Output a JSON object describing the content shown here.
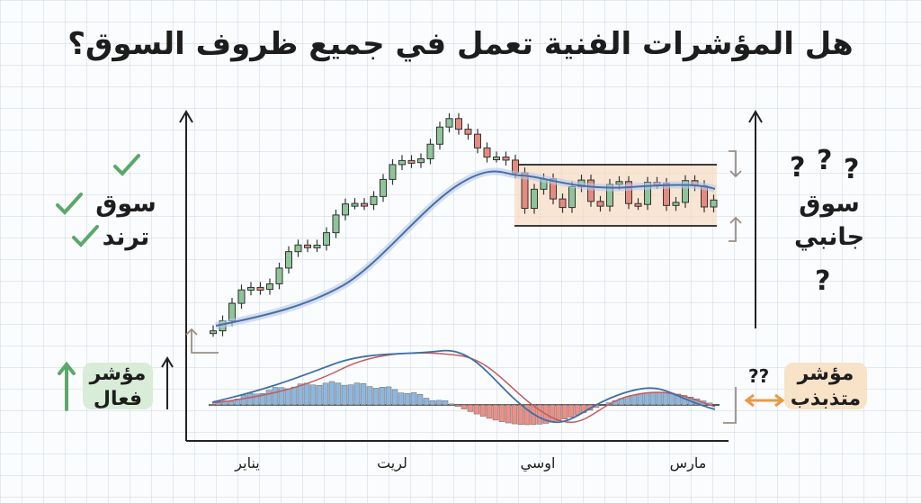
{
  "title": "هل المؤشرات الفنية تعمل في جميع ظروف السوق؟",
  "trend_label": [
    "سوق",
    "ترند"
  ],
  "sideways_label": [
    "سوق",
    "جانبي"
  ],
  "effective_indicator": [
    "مؤشر",
    "فعال"
  ],
  "choppy_indicator": [
    "مؤشر",
    "متذبذب"
  ],
  "x_labels": [
    "يناير",
    "لريت",
    "اوسي",
    "مارس"
  ]
}
